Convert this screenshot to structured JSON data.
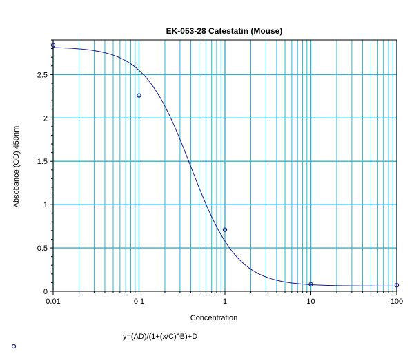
{
  "chart_data": {
    "type": "scatter",
    "title": "EK-053-28 Catestatin (Mouse)",
    "xlabel": "Concentration",
    "ylabel": "Absobance (OD) 450nm",
    "x_scale": "log",
    "xlim": [
      0.01,
      100
    ],
    "ylim": [
      0,
      2.9
    ],
    "x_ticks": [
      {
        "value": 0.01,
        "label": "0.01"
      },
      {
        "value": 0.1,
        "label": "0.1"
      },
      {
        "value": 1,
        "label": "1"
      },
      {
        "value": 10,
        "label": "10"
      },
      {
        "value": 100,
        "label": "100"
      }
    ],
    "y_ticks": [
      {
        "value": 0,
        "label": "0"
      },
      {
        "value": 0.5,
        "label": "0.5"
      },
      {
        "value": 1,
        "label": "1"
      },
      {
        "value": 1.5,
        "label": "1.5"
      },
      {
        "value": 2,
        "label": "2"
      },
      {
        "value": 2.5,
        "label": "2.5"
      }
    ],
    "grid": true,
    "points": [
      {
        "x": 0.01,
        "y": 2.84
      },
      {
        "x": 0.1,
        "y": 2.26
      },
      {
        "x": 1,
        "y": 0.71
      },
      {
        "x": 10,
        "y": 0.08
      },
      {
        "x": 100,
        "y": 0.07
      }
    ],
    "fit": {
      "equation": "y=(AD)/(1+(x/C)^B)+D",
      "A": 2.82,
      "B": 1.6,
      "C": 0.4,
      "D": 0.06
    },
    "colors": {
      "grid": "#29b6d8",
      "curve": "#1a1a8c",
      "points": "#1a1a8c",
      "axis": "#000000"
    }
  }
}
